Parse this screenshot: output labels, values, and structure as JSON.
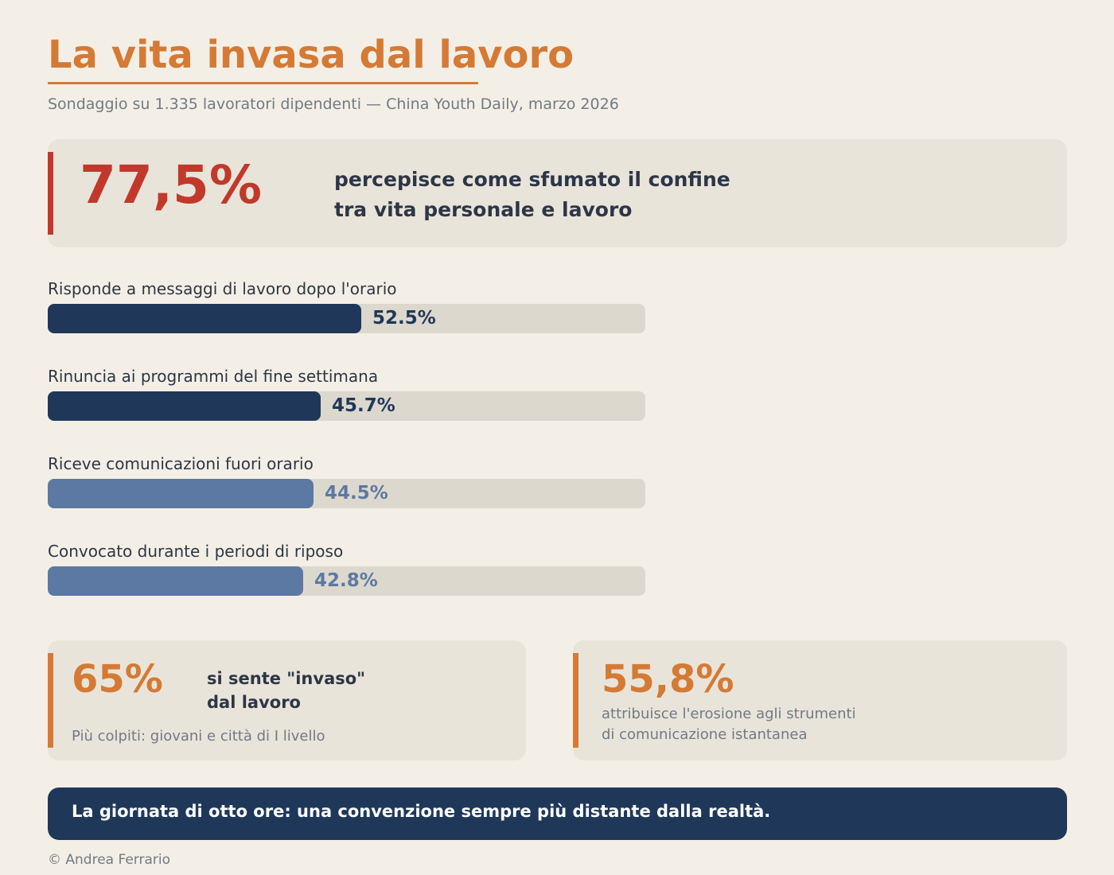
{
  "header": {
    "title": "La vita invasa dal lavoro",
    "subtitle": "Sondaggio su 1.335 lavoratori dipendenti — China Youth Daily, marzo 2026"
  },
  "hero": {
    "value": "77,5%",
    "text_line1": "percepisce come sfumato il confine",
    "text_line2": "tra vita personale e lavoro"
  },
  "chart_data": {
    "type": "bar",
    "orientation": "horizontal",
    "categories": [
      "Risponde a messaggi di lavoro dopo l'orario",
      "Rinuncia ai programmi del fine settimana",
      "Riceve comunicazioni fuori orario",
      "Convocato durante i periodi di riposo"
    ],
    "values": [
      52.5,
      45.7,
      44.5,
      42.8
    ],
    "value_labels": [
      "52.5%",
      "45.7%",
      "44.5%",
      "42.8%"
    ],
    "xlim": [
      0,
      100
    ],
    "unit": "%",
    "colors": [
      "#1f385a",
      "#1f385a",
      "#5b79a3",
      "#5b79a3"
    ],
    "track_color": "#ddd8cd"
  },
  "stats": [
    {
      "value": "65%",
      "text_line1": "si sente \"invaso\"",
      "text_line2": "dal lavoro",
      "note": "Più colpiti: giovani e città di I livello"
    },
    {
      "value": "55,8%",
      "desc_line1": "attribuisce l'erosione agli strumenti",
      "desc_line2": "di comunicazione istantanea"
    }
  ],
  "banner": {
    "text": "La giornata di otto ore: una convenzione sempre più distante dalla realtà."
  },
  "credit": "© Andrea Ferrario",
  "colors": {
    "background": "#f4efe6",
    "accent_orange": "#d57a34",
    "accent_red": "#c0392b",
    "navy": "#1f385a",
    "steel_blue": "#5b79a3",
    "card": "#e9e4da"
  }
}
